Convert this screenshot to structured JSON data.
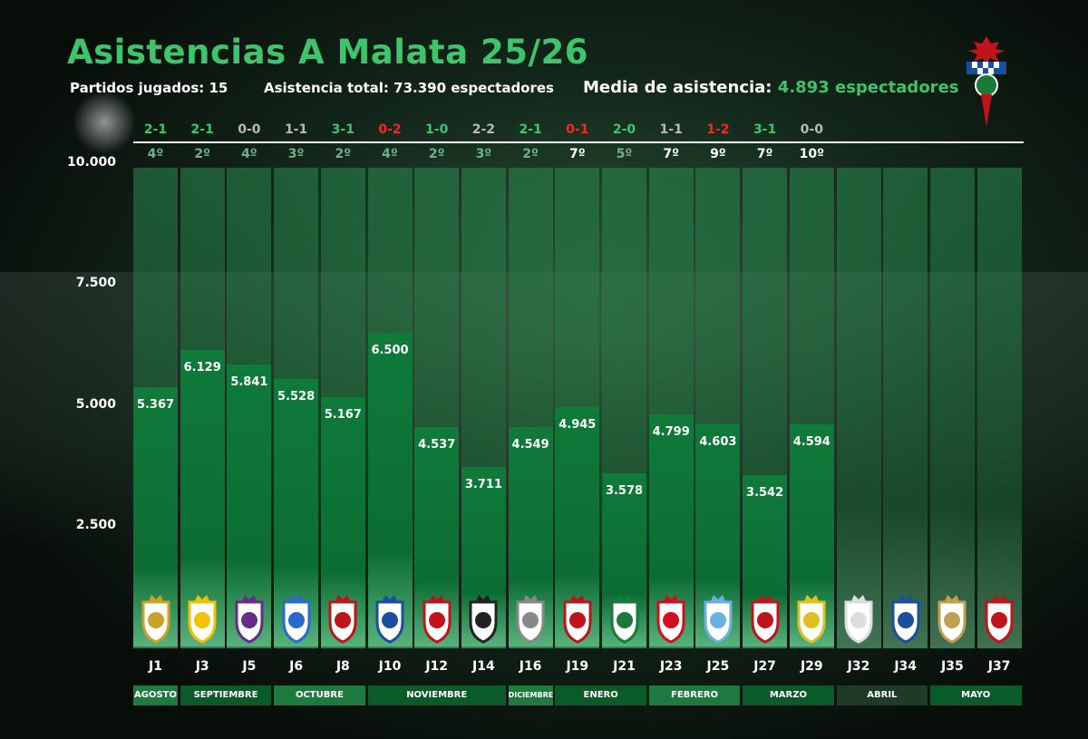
{
  "title": "Asistencias A Malata 25/26",
  "stats": {
    "played": "Partidos jugados: 15",
    "total": "Asistencia total: 73.390 espectadores",
    "avg_label": "Media de asistencia:",
    "avg_value": "4.893 espectadores"
  },
  "colors": {
    "accent": "#3ec46b",
    "win": "#3ec46b",
    "draw": "#b8b8b8",
    "loss": "#ff2222",
    "bar": "#0f7a3a"
  },
  "y_ticks": [
    "10.000",
    "7.500",
    "5.000",
    "2.500"
  ],
  "rounds": [
    {
      "j": "J1",
      "value": 5367,
      "label": "5.367",
      "result": "2-1",
      "outcome": "win",
      "pos": "4º",
      "pos_color": "#6fb08a"
    },
    {
      "j": "J3",
      "value": 6129,
      "label": "6.129",
      "result": "2-1",
      "outcome": "win",
      "pos": "2º",
      "pos_color": "#6fb08a"
    },
    {
      "j": "J5",
      "value": 5841,
      "label": "5.841",
      "result": "0-0",
      "outcome": "draw",
      "pos": "4º",
      "pos_color": "#6fb08a"
    },
    {
      "j": "J6",
      "value": 5528,
      "label": "5.528",
      "result": "1-1",
      "outcome": "draw",
      "pos": "3º",
      "pos_color": "#6fb08a"
    },
    {
      "j": "J8",
      "value": 5167,
      "label": "5.167",
      "result": "3-1",
      "outcome": "win",
      "pos": "2º",
      "pos_color": "#6fb08a"
    },
    {
      "j": "J10",
      "value": 6500,
      "label": "6.500",
      "result": "0-2",
      "outcome": "loss",
      "pos": "4º",
      "pos_color": "#6fb08a"
    },
    {
      "j": "J12",
      "value": 4537,
      "label": "4.537",
      "result": "1-0",
      "outcome": "win",
      "pos": "2º",
      "pos_color": "#6fb08a"
    },
    {
      "j": "J14",
      "value": 3711,
      "label": "3.711",
      "result": "2-2",
      "outcome": "draw",
      "pos": "3º",
      "pos_color": "#6fb08a"
    },
    {
      "j": "J16",
      "value": 4549,
      "label": "4.549",
      "result": "2-1",
      "outcome": "win",
      "pos": "2º",
      "pos_color": "#6fb08a"
    },
    {
      "j": "J19",
      "value": 4945,
      "label": "4.945",
      "result": "0-1",
      "outcome": "loss",
      "pos": "7º",
      "pos_color": "#ffffff"
    },
    {
      "j": "J21",
      "value": 3578,
      "label": "3.578",
      "result": "2-0",
      "outcome": "win",
      "pos": "5º",
      "pos_color": "#6fb08a"
    },
    {
      "j": "J23",
      "value": 4799,
      "label": "4.799",
      "result": "1-1",
      "outcome": "draw",
      "pos": "7º",
      "pos_color": "#ffffff"
    },
    {
      "j": "J25",
      "value": 4603,
      "label": "4.603",
      "result": "1-2",
      "outcome": "loss",
      "pos": "9º",
      "pos_color": "#ffffff"
    },
    {
      "j": "J27",
      "value": 3542,
      "label": "3.542",
      "result": "3-1",
      "outcome": "win",
      "pos": "7º",
      "pos_color": "#ffffff"
    },
    {
      "j": "J29",
      "value": 4594,
      "label": "4.594",
      "result": "0-0",
      "outcome": "draw",
      "pos": "10º",
      "pos_color": "#ffffff"
    },
    {
      "j": "J32",
      "value": null,
      "label": "",
      "result": "",
      "outcome": "",
      "pos": "",
      "pos_color": "#ffffff"
    },
    {
      "j": "J34",
      "value": null,
      "label": "",
      "result": "",
      "outcome": "",
      "pos": "",
      "pos_color": "#ffffff"
    },
    {
      "j": "J35",
      "value": null,
      "label": "",
      "result": "",
      "outcome": "",
      "pos": "",
      "pos_color": "#ffffff"
    },
    {
      "j": "J37",
      "value": null,
      "label": "",
      "result": "",
      "outcome": "",
      "pos": "",
      "pos_color": "#ffffff"
    }
  ],
  "months": [
    {
      "name": "AGOSTO",
      "span": 1,
      "color": "#1e7a3e"
    },
    {
      "name": "SEPTIEMBRE",
      "span": 2,
      "color": "#0b5a2a"
    },
    {
      "name": "OCTUBRE",
      "span": 2,
      "color": "#1e7a3e"
    },
    {
      "name": "NOVIEMBRE",
      "span": 3,
      "color": "#0b5a2a"
    },
    {
      "name": "DICIEMBRE",
      "span": 1,
      "color": "#1e7a3e"
    },
    {
      "name": "ENERO",
      "span": 2,
      "color": "#0b5a2a"
    },
    {
      "name": "FEBRERO",
      "span": 2,
      "color": "#1e7a3e"
    },
    {
      "name": "MARZO",
      "span": 2,
      "color": "#0b5a2a"
    },
    {
      "name": "ABRIL",
      "span": 2,
      "color": "#1f3a27"
    },
    {
      "name": "MAYO",
      "span": 2,
      "color": "#0b5a2a"
    }
  ],
  "chart_data": {
    "type": "bar",
    "title": "Asistencias A Malata 25/26",
    "categories": [
      "J1",
      "J3",
      "J5",
      "J6",
      "J8",
      "J10",
      "J12",
      "J14",
      "J16",
      "J19",
      "J21",
      "J23",
      "J25",
      "J27",
      "J29",
      "J32",
      "J34",
      "J35",
      "J37"
    ],
    "values": [
      5367,
      6129,
      5841,
      5528,
      5167,
      6500,
      4537,
      3711,
      4549,
      4945,
      3578,
      4799,
      4603,
      3542,
      4594,
      null,
      null,
      null,
      null
    ],
    "ylim": [
      0,
      10000
    ],
    "y_ticks": [
      2500,
      5000,
      7500,
      10000
    ],
    "xlabel": "",
    "ylabel": ""
  }
}
